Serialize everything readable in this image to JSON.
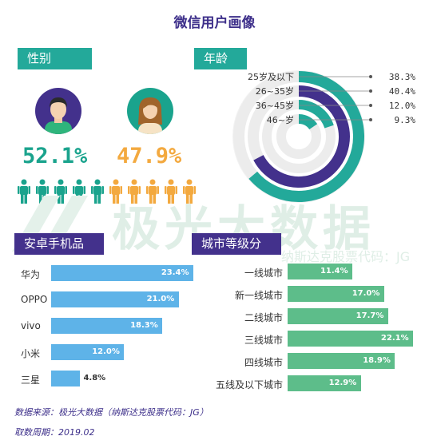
{
  "title": "微信用户画像",
  "gender": {
    "label": "性别",
    "male_pct": "52.1%",
    "female_pct": "47.9%",
    "male_color": "#1aa38d",
    "female_color": "#f3a93f"
  },
  "age": {
    "label": "年龄"
  },
  "brand": {
    "label": "安卓手机品牌"
  },
  "city": {
    "label": "城市等级分布"
  },
  "watermark": {
    "main": "极光大数据",
    "sub": "纳斯达克股票代码：JG"
  },
  "footer": {
    "source": "数据来源：极光大数据（纳斯达克股票代码：JG）",
    "period": "取数周期：2019.02"
  },
  "chart_data": [
    {
      "type": "pie",
      "subtype": "radial-bar",
      "categories": [
        "25岁及以下",
        "26~35岁",
        "36~45岁",
        "46~岁"
      ],
      "values": [
        38.3,
        40.4,
        12.0,
        9.3
      ],
      "labels": [
        "38.3%",
        "40.4%",
        "12.0%",
        "9.3%"
      ],
      "colors": [
        "#23a99a",
        "#43318c",
        "#23a99a",
        "#23a99a"
      ]
    },
    {
      "type": "bar",
      "orientation": "horizontal",
      "categories": [
        "华为",
        "OPPO",
        "vivo",
        "小米",
        "三星"
      ],
      "values": [
        23.4,
        21.0,
        18.3,
        12.0,
        4.8
      ],
      "labels": [
        "23.4%",
        "21.0%",
        "18.3%",
        "12.0%",
        "4.8%"
      ],
      "color": "#5eb3e8"
    },
    {
      "type": "bar",
      "orientation": "horizontal",
      "categories": [
        "一线城市",
        "新一线城市",
        "二线城市",
        "三线城市",
        "四线城市",
        "五线及以下城市"
      ],
      "values": [
        11.4,
        17.0,
        17.7,
        22.1,
        18.9,
        12.9
      ],
      "labels": [
        "11.4%",
        "17.0%",
        "17.7%",
        "22.1%",
        "18.9%",
        "12.9%"
      ],
      "color": "#5dbd8a"
    }
  ]
}
